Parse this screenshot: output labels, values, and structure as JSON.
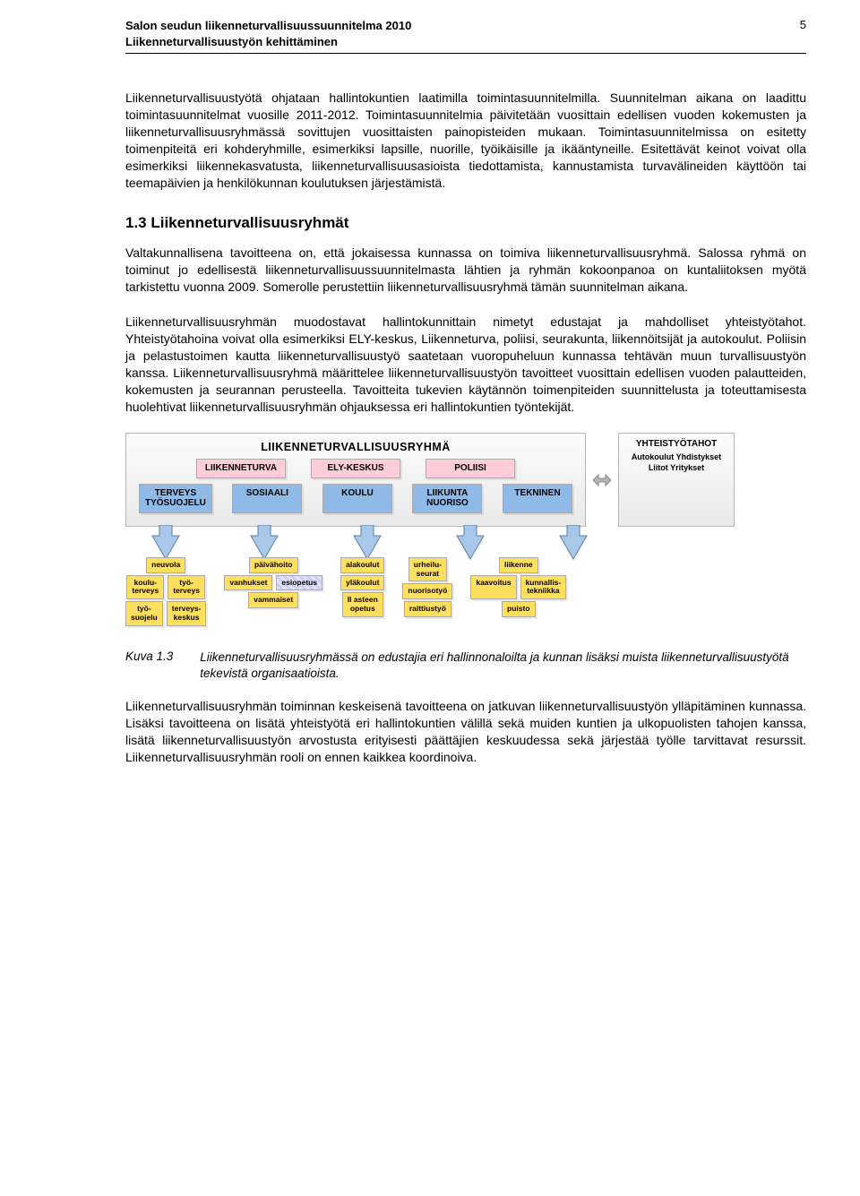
{
  "header": {
    "title_line1": "Salon seudun liikenneturvallisuussuunnitelma 2010",
    "title_line2": "Liikenneturvallisuustyön kehittäminen",
    "page_number": "5"
  },
  "para1": "Liikenneturvallisuustyötä ohjataan hallintokuntien laatimilla toimintasuunnitelmilla. Suunnitelman aikana on laadittu toimintasuunnitelmat vuosille 2011-2012. Toimintasuunnitelmia päivitetään vuosittain edellisen vuoden kokemusten ja liikenneturvallisuusryhmässä sovittujen vuosittaisten painopisteiden mukaan. Toimintasuunnitelmissa on esitetty toimenpiteitä eri kohderyhmille, esimerkiksi lapsille, nuorille, työikäisille ja ikääntyneille. Esitettävät keinot voivat olla esimerkiksi liikennekasvatusta, liikenneturvallisuusasioista tiedottamista, kannustamista turvavälineiden käyttöön tai teemapäivien ja henkilökunnan koulutuksen järjestämistä.",
  "section_heading": "1.3 Liikenneturvallisuusryhmät",
  "para2": "Valtakunnallisena tavoitteena on, että jokaisessa kunnassa on toimiva liikenneturvallisuusryhmä. Salossa ryhmä on toiminut jo edellisestä liikenneturvallisuussuunnitelmasta lähtien ja ryhmän kokoonpanoa on kuntaliitoksen myötä tarkistettu vuonna 2009. Somerolle perustettiin liikenneturvallisuusryhmä tämän suunnitelman aikana.",
  "para3": "Liikenneturvallisuusryhmän muodostavat hallintokunnittain nimetyt edustajat ja mahdolliset yhteistyötahot. Yhteistyötahoina voivat olla esimerkiksi ELY-keskus, Liikenneturva, poliisi, seurakunta, liikennöitsijät ja autokoulut. Poliisin ja pelastustoimen kautta liikenneturvallisuustyö saatetaan vuoropuheluun kunnassa tehtävän muun turvallisuustyön kanssa. Liikenneturvallisuusryhmä määrittelee liikenneturvallisuustyön tavoitteet vuosittain edellisen vuoden palautteiden, kokemusten ja seurannan perusteella. Tavoitteita tukevien käytännön toimenpiteiden suunnittelusta ja toteuttamisesta huolehtivat liikenneturvallisuusryhmän ohjauksessa eri hallintokuntien työntekijät.",
  "diagram": {
    "main_title": "LIIKENNETURVALLISUUSRYHMÄ",
    "pink": [
      "LIIKENNETURVA",
      "ELY-KESKUS",
      "POLIISI"
    ],
    "blue": [
      "TERVEYS\nTYÖSUOJELU",
      "SOSIAALI",
      "KOULU",
      "LIIKUNTA\nNUORISO",
      "TEKNINEN"
    ],
    "side_title": "YHTEISTYÖTAHOT",
    "side_items": "Autokoulut\nYhdistykset\nLiitot\nYritykset",
    "clusters": [
      {
        "items": [
          [
            "neuvola"
          ],
          [
            "koulu-\nterveys",
            "työ-\nterveys"
          ],
          [
            "työ-\nsuojelu",
            "terveys-\nkeskus"
          ]
        ]
      },
      {
        "items": [
          [
            "päivähoito"
          ],
          [
            "vanhukset",
            "esiopetus"
          ],
          [
            "vammaiset"
          ]
        ],
        "hatched_index": "1.1"
      },
      {
        "items": [
          [
            "alakoulut"
          ],
          [
            "yläkoulut"
          ],
          [
            "II asteen\nopetus"
          ]
        ]
      },
      {
        "items": [
          [
            "urheilu-\nseurat"
          ],
          [
            "nuorisotyö"
          ],
          [
            "raittiustyö"
          ]
        ]
      },
      {
        "items": [
          [
            "liikenne"
          ],
          [
            "kaavoitus",
            "kunnallis-\ntekniikka"
          ],
          [
            "puisto"
          ]
        ]
      }
    ],
    "colors": {
      "pink": "#ffccda",
      "blue": "#8fb9e6",
      "yellow": "#ffdf5e",
      "arrow_fill": "#a9c7e8",
      "arrow_stroke": "#5b7fa8"
    }
  },
  "caption_label": "Kuva 1.3",
  "caption_text": "Liikenneturvallisuusryhmässä on edustajia eri hallinnonaloilta ja kunnan lisäksi muista liikenneturvallisuustyötä tekevistä organisaatioista.",
  "para4": "Liikenneturvallisuusryhmän toiminnan keskeisenä tavoitteena on jatkuvan liikenneturvallisuustyön ylläpitäminen kunnassa. Lisäksi tavoitteena on lisätä yhteistyötä eri hallintokuntien välillä sekä muiden kuntien ja ulkopuolisten tahojen kanssa, lisätä liikenneturvallisuustyön arvostusta erityisesti päättäjien keskuudessa sekä järjestää työlle tarvittavat resurssit. Liikenneturvallisuusryhmän rooli on ennen kaikkea koordinoiva."
}
